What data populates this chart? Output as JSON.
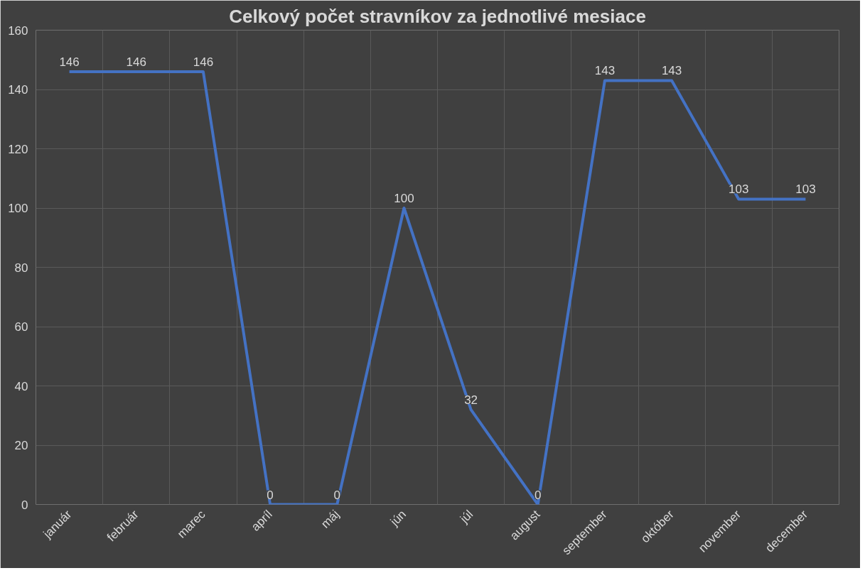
{
  "chart_data": {
    "type": "line",
    "title": "Celkový počet stravníkov za jednotlivé mesiace",
    "categories": [
      "január",
      "február",
      "marec",
      "apríl",
      "máj",
      "jún",
      "júl",
      "august",
      "september",
      "október",
      "november",
      "december"
    ],
    "series": [
      {
        "color": "#4472c4",
        "values": [
          146,
          146,
          146,
          0,
          0,
          100,
          32,
          0,
          143,
          143,
          103,
          103
        ]
      }
    ],
    "ylim": [
      0,
      160
    ],
    "yticks": [
      0,
      20,
      40,
      60,
      80,
      100,
      120,
      140,
      160
    ],
    "grid": true,
    "data_labels": true,
    "marker": "none",
    "line_style": "solid"
  }
}
